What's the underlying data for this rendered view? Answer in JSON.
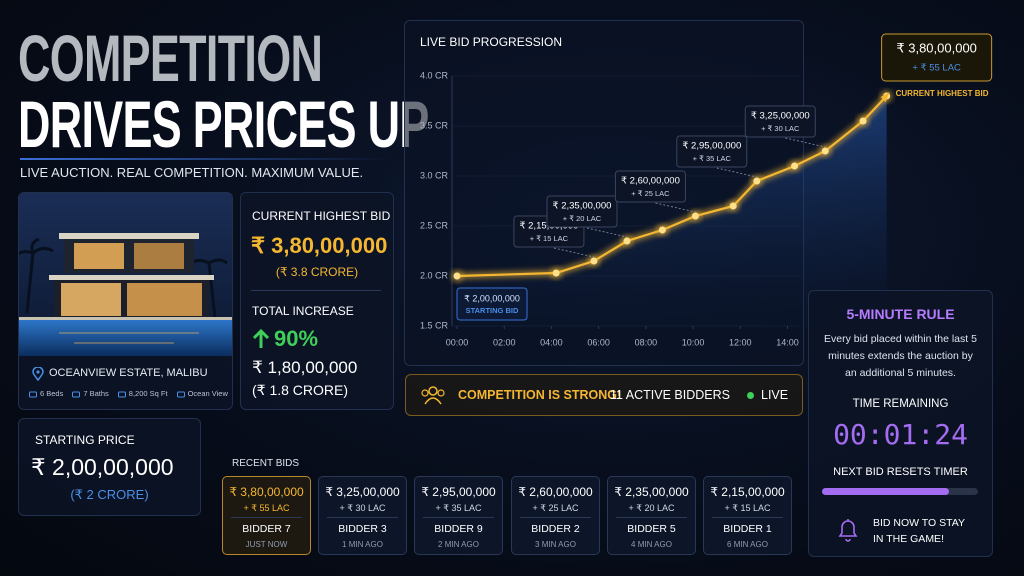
{
  "header": {
    "title_line1": "COMPETITION",
    "title_line2": "DRIVES PRICES UP",
    "subtitle": "LIVE AUCTION. REAL COMPETITION. MAXIMUM VALUE."
  },
  "property": {
    "name": "OCEANVIEW ESTATE, MALIBU",
    "features": [
      "6 Beds",
      "7 Baths",
      "8,200 Sq Ft",
      "Ocean View"
    ]
  },
  "current_bid": {
    "label": "CURRENT HIGHEST BID",
    "amount": "₹ 3,80,00,000",
    "amount_crore": "(₹ 3.8 CRORE)",
    "increase_label": "TOTAL INCREASE",
    "increase_percent": "90%",
    "increase_amount": "₹ 1,80,00,000",
    "increase_crore": "(₹ 1.8 CRORE)"
  },
  "starting_price": {
    "label": "STARTING PRICE",
    "amount": "₹ 2,00,00,000",
    "amount_crore": "(₹ 2 CRORE)"
  },
  "chart_data": {
    "type": "line",
    "title": "LIVE BID PROGRESSION",
    "x": [
      0,
      4.2,
      5.8,
      7.2,
      8.7,
      10.1,
      11.7,
      12.7,
      14.3,
      15.6,
      17.2,
      18.2
    ],
    "values": [
      2.0,
      2.03,
      2.15,
      2.35,
      2.46,
      2.6,
      2.7,
      2.95,
      3.1,
      3.25,
      3.55,
      3.8
    ],
    "value_labels": [
      "₹ 2,00,00,000",
      null,
      "₹ 2,15,00,000",
      "₹ 2,35,00,000",
      null,
      "₹ 2,60,00,000",
      null,
      "₹ 2,95,00,000",
      null,
      "₹ 3,25,00,000",
      null,
      "₹ 3,80,00,000"
    ],
    "changes": [
      null,
      null,
      "+ ₹ 15 LAC",
      "+ ₹ 20 LAC",
      null,
      "+ ₹ 25 LAC",
      null,
      "+ ₹ 35 LAC",
      null,
      "+ ₹ 30 LAC",
      null,
      "+ ₹ 55 LAC"
    ],
    "point_notes": [
      "STARTING BID",
      null,
      null,
      null,
      null,
      null,
      null,
      null,
      null,
      null,
      null,
      "CURRENT HIGHEST BID"
    ],
    "color": "#f5b731",
    "xlim": [
      0,
      18.3
    ],
    "xticks": [
      {
        "value": 0,
        "label": "00:00"
      },
      {
        "value": 2,
        "label": "02:00"
      },
      {
        "value": 4,
        "label": "04:00"
      },
      {
        "value": 6,
        "label": "06:00"
      },
      {
        "value": 8,
        "label": "08:00"
      },
      {
        "value": 10,
        "label": "10:00"
      },
      {
        "value": 12,
        "label": "12:00"
      },
      {
        "value": 14,
        "label": "14:00"
      }
    ],
    "ylim": [
      1.5,
      4.0
    ],
    "yticks": [
      {
        "value": 1.5,
        "label": "1.5 CR"
      },
      {
        "value": 2.0,
        "label": "2.0 CR"
      },
      {
        "value": 2.5,
        "label": "2.5 CR"
      },
      {
        "value": 3.0,
        "label": "3.0 CR"
      },
      {
        "value": 3.5,
        "label": "3.5 CR"
      },
      {
        "value": 4.0,
        "label": "4.0 CR"
      }
    ],
    "grid": true
  },
  "status_banner": {
    "message": "COMPETITION IS STRONG!",
    "bidders": "11 ACTIVE BIDDERS",
    "live": "LIVE"
  },
  "recent_bids": {
    "title": "RECENT BIDS",
    "bids": [
      {
        "amount": "₹ 3,80,00,000",
        "change": "+ ₹ 55 LAC",
        "bidder": "BIDDER 7",
        "time": "JUST NOW"
      },
      {
        "amount": "₹ 3,25,00,000",
        "change": "+ ₹ 30 LAC",
        "bidder": "BIDDER 3",
        "time": "1 MIN AGO"
      },
      {
        "amount": "₹ 2,95,00,000",
        "change": "+ ₹ 35 LAC",
        "bidder": "BIDDER 9",
        "time": "2 MIN AGO"
      },
      {
        "amount": "₹ 2,60,00,000",
        "change": "+ ₹ 25 LAC",
        "bidder": "BIDDER 2",
        "time": "3 MIN AGO"
      },
      {
        "amount": "₹ 2,35,00,000",
        "change": "+ ₹ 20 LAC",
        "bidder": "BIDDER 5",
        "time": "4 MIN AGO"
      },
      {
        "amount": "₹ 2,15,00,000",
        "change": "+ ₹ 15 LAC",
        "bidder": "BIDDER 1",
        "time": "6 MIN AGO"
      }
    ]
  },
  "rule_panel": {
    "title": "5-MINUTE RULE",
    "text": "Every bid placed within the last 5 minutes extends the auction by an additional 5 minutes.",
    "time_label": "TIME REMAINING",
    "timer": "00:01:24",
    "reset_label": "NEXT BID RESETS TIMER",
    "cta": "BID NOW TO STAY IN THE GAME!"
  }
}
